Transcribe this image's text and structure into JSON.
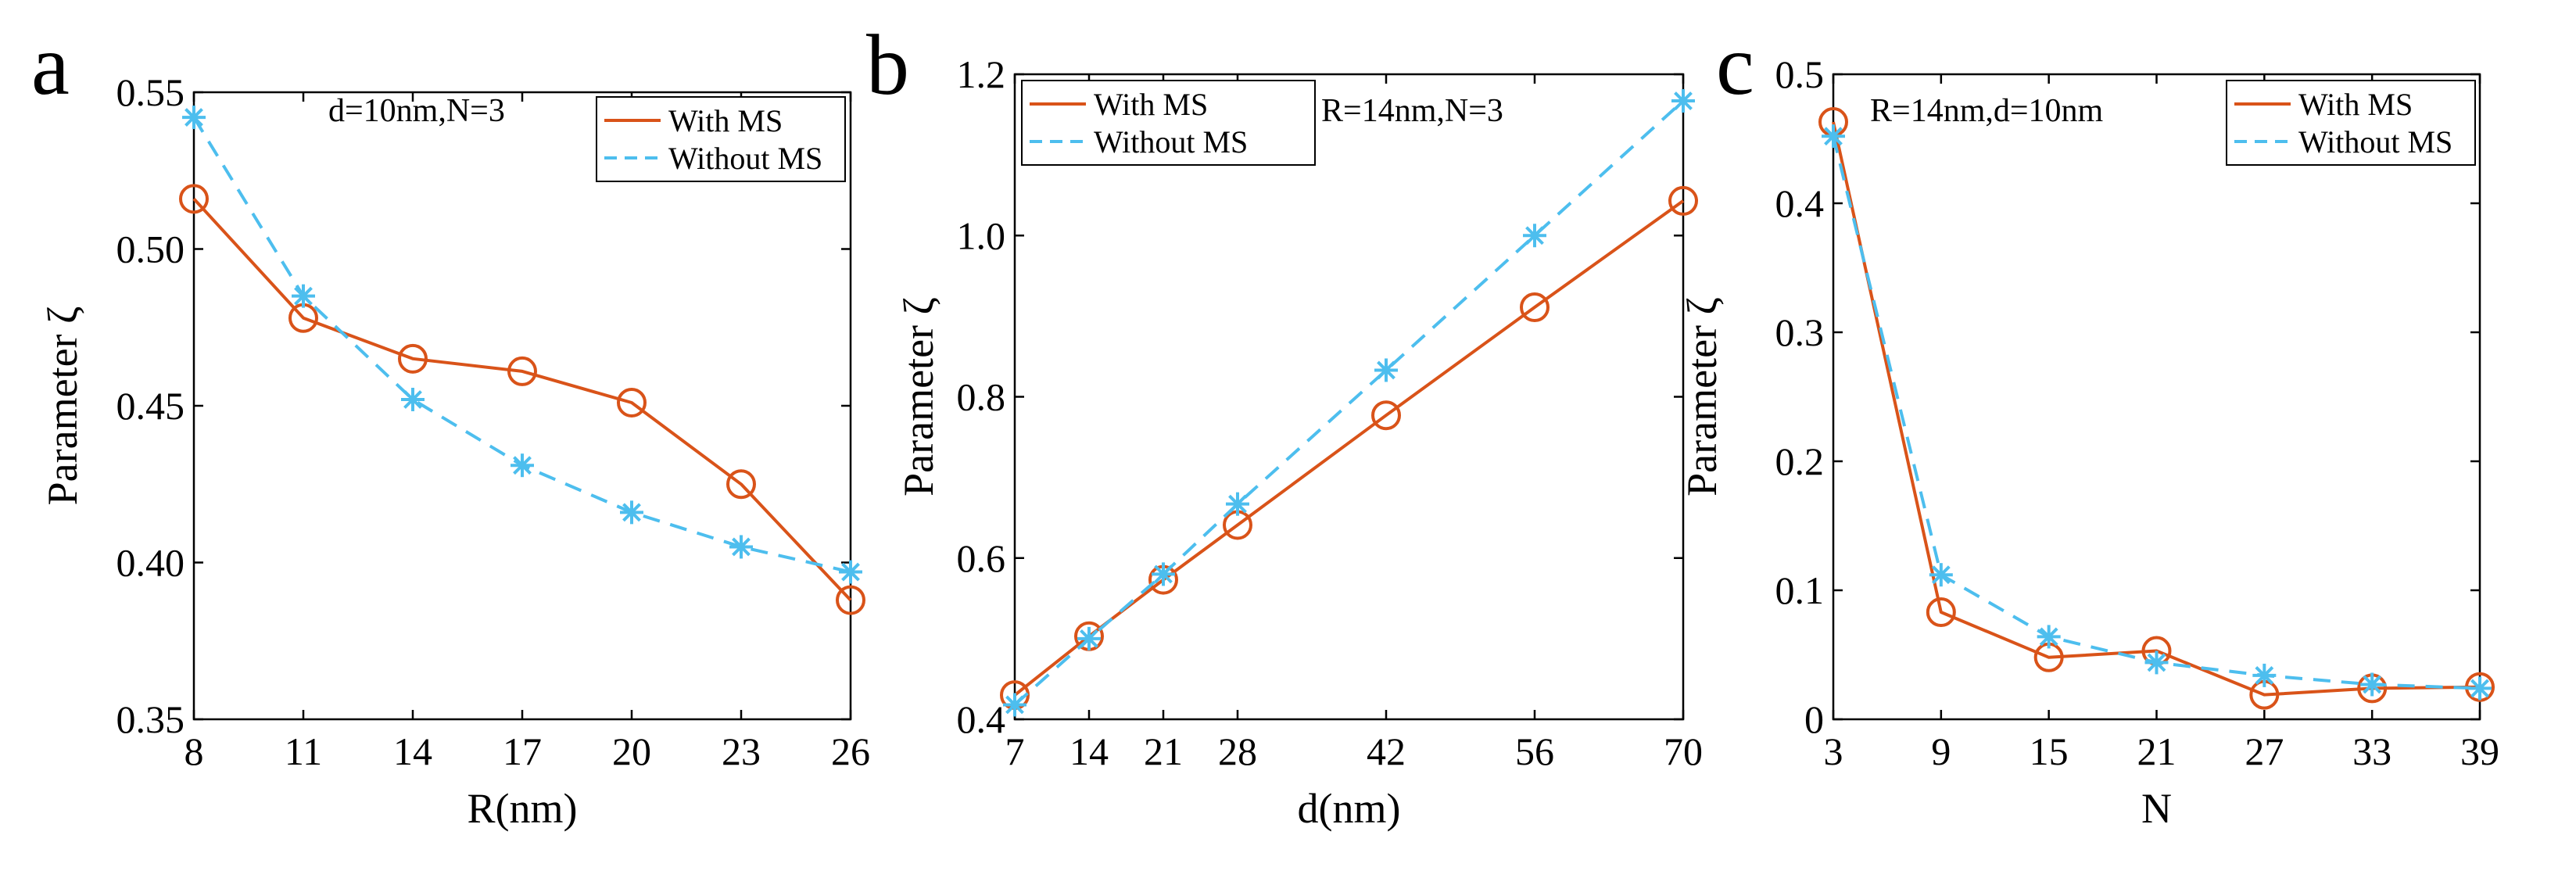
{
  "colors": {
    "with_ms": "#D95319",
    "without_ms": "#4DBEEE",
    "axis": "#000000",
    "background": "#ffffff"
  },
  "chart_data": [
    {
      "panel": "a",
      "type": "line",
      "xlabel": "R(nm)",
      "ylabel": "Parameter ζ",
      "annotation": "d=10nm,N=3",
      "legend_position": "top-right",
      "xlim": [
        8,
        26
      ],
      "ylim": [
        0.35,
        0.55
      ],
      "xticks": [
        8,
        11,
        14,
        17,
        20,
        23,
        26
      ],
      "xtick_labels": [
        "8",
        "11",
        "14",
        "17",
        "20",
        "23",
        "26"
      ],
      "yticks": [
        0.35,
        0.4,
        0.45,
        0.5,
        0.55
      ],
      "ytick_labels": [
        "0.35",
        "0.40",
        "0.45",
        "0.50",
        "0.55"
      ],
      "x": [
        8,
        11,
        14,
        17,
        20,
        23,
        26
      ],
      "series": [
        {
          "name": "With MS",
          "style": "solid",
          "marker": "circle",
          "values": [
            0.516,
            0.478,
            0.465,
            0.461,
            0.451,
            0.425,
            0.388
          ]
        },
        {
          "name": "Without MS",
          "style": "dashed",
          "marker": "asterisk",
          "values": [
            0.542,
            0.485,
            0.452,
            0.431,
            0.416,
            0.405,
            0.397
          ]
        }
      ]
    },
    {
      "panel": "b",
      "type": "line",
      "xlabel": "d(nm)",
      "ylabel": "Parameter ζ",
      "annotation": "R=14nm,N=3",
      "legend_position": "top-left",
      "xlim": [
        7,
        70
      ],
      "ylim": [
        0.4,
        1.2
      ],
      "xticks": [
        7,
        14,
        21,
        28,
        42,
        56,
        70
      ],
      "xtick_labels": [
        "7",
        "14",
        "21",
        "28",
        "42",
        "56",
        "70"
      ],
      "yticks": [
        0.4,
        0.6,
        0.8,
        1.0,
        1.2
      ],
      "ytick_labels": [
        "0.4",
        "0.6",
        "0.8",
        "1.0",
        "1.2"
      ],
      "x": [
        7,
        14,
        21,
        28,
        42,
        56,
        70
      ],
      "series": [
        {
          "name": "With MS",
          "style": "solid",
          "marker": "circle",
          "values": [
            0.43,
            0.503,
            0.573,
            0.641,
            0.777,
            0.911,
            1.043
          ]
        },
        {
          "name": "Without MS",
          "style": "dashed",
          "marker": "asterisk",
          "values": [
            0.418,
            0.5,
            0.58,
            0.667,
            0.833,
            1.0,
            1.167
          ]
        }
      ]
    },
    {
      "panel": "c",
      "type": "line",
      "xlabel": "N",
      "ylabel": "Parameter ζ",
      "annotation": "R=14nm,d=10nm",
      "legend_position": "top-right",
      "xlim": [
        3,
        39
      ],
      "ylim": [
        0,
        0.5
      ],
      "xticks": [
        3,
        9,
        15,
        21,
        27,
        33,
        39
      ],
      "xtick_labels": [
        "3",
        "9",
        "15",
        "21",
        "27",
        "33",
        "39"
      ],
      "yticks": [
        0,
        0.1,
        0.2,
        0.3,
        0.4,
        0.5
      ],
      "ytick_labels": [
        "0",
        "0.1",
        "0.2",
        "0.3",
        "0.4",
        "0.5"
      ],
      "x": [
        3,
        9,
        15,
        21,
        27,
        33,
        39
      ],
      "series": [
        {
          "name": "With MS",
          "style": "solid",
          "marker": "circle",
          "values": [
            0.463,
            0.083,
            0.048,
            0.053,
            0.019,
            0.024,
            0.025
          ]
        },
        {
          "name": "Without MS",
          "style": "dashed",
          "marker": "asterisk",
          "values": [
            0.452,
            0.112,
            0.064,
            0.044,
            0.034,
            0.027,
            0.024
          ]
        }
      ]
    }
  ]
}
